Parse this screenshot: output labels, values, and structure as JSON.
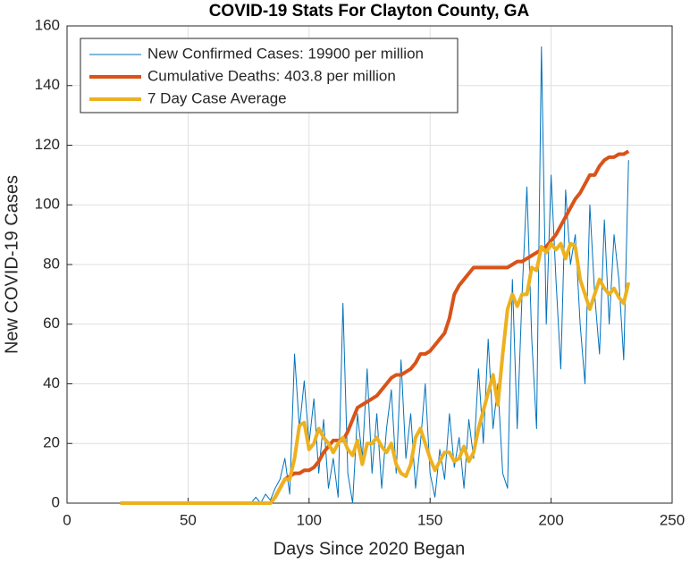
{
  "chart_data": {
    "type": "line",
    "title": "COVID-19 Stats For Clayton County, GA",
    "xlabel": "Days Since 2020 Began",
    "ylabel": "New COVID-19 Cases",
    "xlim": [
      0,
      250
    ],
    "xticks": [
      0,
      50,
      100,
      150,
      200,
      250
    ],
    "ylim": [
      0,
      160
    ],
    "yticks": [
      0,
      20,
      40,
      60,
      80,
      100,
      120,
      140,
      160
    ],
    "grid": true,
    "legend_location": "northwest",
    "x": [
      22,
      24,
      26,
      28,
      30,
      32,
      34,
      36,
      38,
      40,
      42,
      44,
      46,
      48,
      50,
      52,
      54,
      56,
      58,
      60,
      62,
      64,
      66,
      68,
      70,
      72,
      74,
      76,
      78,
      80,
      82,
      84,
      86,
      88,
      90,
      92,
      94,
      96,
      98,
      100,
      102,
      104,
      106,
      108,
      110,
      112,
      114,
      116,
      118,
      120,
      122,
      124,
      126,
      128,
      130,
      132,
      134,
      136,
      138,
      140,
      142,
      144,
      146,
      148,
      150,
      152,
      154,
      156,
      158,
      160,
      162,
      164,
      166,
      168,
      170,
      172,
      174,
      176,
      178,
      180,
      182,
      184,
      186,
      188,
      190,
      192,
      194,
      196,
      198,
      200,
      202,
      204,
      206,
      208,
      210,
      212,
      214,
      216,
      218,
      220,
      222,
      224,
      226,
      228,
      230,
      232
    ],
    "series": [
      {
        "name": "New Confirmed Cases: 19900 per million",
        "color": "#0072bd",
        "width": 1,
        "values": [
          0,
          0,
          0,
          0,
          0,
          0,
          0,
          0,
          0,
          0,
          0,
          0,
          0,
          0,
          0,
          0,
          0,
          0,
          0,
          0,
          0,
          0,
          0,
          0,
          0,
          0,
          0,
          0,
          2,
          0,
          3,
          1,
          5,
          8,
          15,
          3,
          50,
          25,
          41,
          20,
          35,
          10,
          28,
          5,
          15,
          2,
          67,
          10,
          0,
          30,
          15,
          45,
          10,
          30,
          5,
          25,
          38,
          10,
          48,
          15,
          30,
          5,
          20,
          40,
          10,
          2,
          18,
          8,
          30,
          12,
          22,
          5,
          28,
          15,
          45,
          20,
          55,
          25,
          40,
          10,
          5,
          75,
          25,
          70,
          106,
          55,
          25,
          153,
          60,
          110,
          75,
          45,
          105,
          80,
          90,
          60,
          40,
          100,
          70,
          50,
          95,
          60,
          90,
          75,
          48,
          115
        ]
      },
      {
        "name": "Cumulative Deaths: 403.8 per million",
        "color": "#d95319",
        "width": 4,
        "values": [
          0,
          0,
          0,
          0,
          0,
          0,
          0,
          0,
          0,
          0,
          0,
          0,
          0,
          0,
          0,
          0,
          0,
          0,
          0,
          0,
          0,
          0,
          0,
          0,
          0,
          0,
          0,
          0,
          0,
          0,
          0,
          0,
          2,
          5,
          8,
          9,
          10,
          10,
          11,
          11,
          12,
          14,
          17,
          19,
          21,
          21,
          21,
          24,
          28,
          32,
          33,
          34,
          35,
          36,
          38,
          40,
          42,
          43,
          43,
          44,
          45,
          47,
          50,
          50,
          51,
          53,
          55,
          57,
          62,
          70,
          73,
          75,
          77,
          79,
          79,
          79,
          79,
          79,
          79,
          79,
          79,
          80,
          81,
          81,
          82,
          83,
          84,
          85,
          86,
          88,
          90,
          93,
          96,
          99,
          102,
          104,
          107,
          110,
          110,
          113,
          115,
          116,
          116,
          117,
          117,
          118
        ]
      },
      {
        "name": "7 Day Case Average",
        "color": "#edb120",
        "width": 4,
        "values": [
          0,
          0,
          0,
          0,
          0,
          0,
          0,
          0,
          0,
          0,
          0,
          0,
          0,
          0,
          0,
          0,
          0,
          0,
          0,
          0,
          0,
          0,
          0,
          0,
          0,
          0,
          0,
          0,
          0,
          0,
          0,
          0,
          2,
          5,
          8,
          8,
          15,
          26,
          27,
          18,
          20,
          25,
          22,
          20,
          17,
          20,
          22,
          18,
          16,
          21,
          13,
          20,
          20,
          22,
          19,
          17,
          20,
          13,
          10,
          9,
          13,
          22,
          25,
          20,
          15,
          11,
          14,
          17,
          17,
          14,
          15,
          19,
          14,
          17,
          25,
          31,
          37,
          43,
          33,
          50,
          65,
          70,
          66,
          70,
          70,
          79,
          78,
          86,
          84,
          87,
          85,
          87,
          82,
          87,
          86,
          75,
          70,
          65,
          70,
          75,
          72,
          70,
          72,
          69,
          67,
          74
        ]
      }
    ]
  }
}
